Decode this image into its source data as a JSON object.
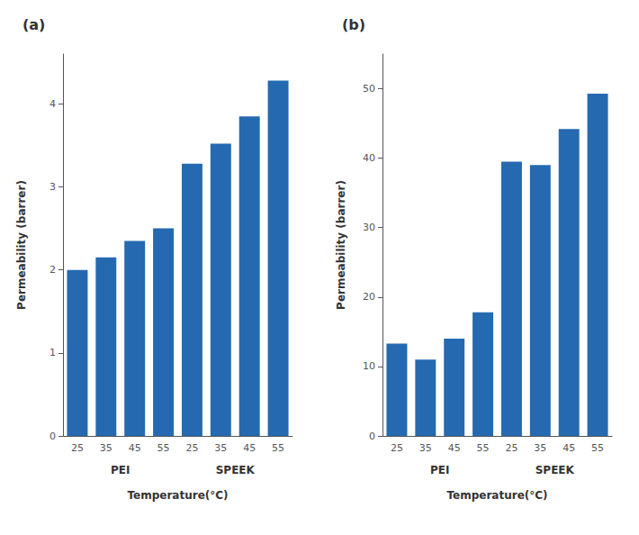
{
  "chart_data": [
    {
      "type": "bar",
      "title": "(a)",
      "categories": [
        "25",
        "35",
        "45",
        "55",
        "25",
        "35",
        "45",
        "55"
      ],
      "annotations": [
        "PEI",
        "SPEEK"
      ],
      "values": [
        2.0,
        2.15,
        2.35,
        2.5,
        3.28,
        3.52,
        3.85,
        4.28
      ],
      "color": "#2569b0",
      "xlabel": "Temperature(°C)",
      "ylabel": "Permeability (barrer)",
      "ylim": [
        0,
        4.6
      ],
      "yticks": [
        0,
        1,
        2,
        3,
        4
      ],
      "grid": false
    },
    {
      "type": "bar",
      "title": "(b)",
      "categories": [
        "25",
        "35",
        "45",
        "55",
        "25",
        "35",
        "45",
        "55"
      ],
      "annotations": [
        "PEI",
        "SPEEK"
      ],
      "values": [
        13.3,
        11.0,
        14.0,
        17.8,
        39.5,
        39.0,
        44.2,
        49.3
      ],
      "color": "#2569b0",
      "xlabel": "Temperature(°C)",
      "ylabel": "Permeability (barrer)",
      "ylim": [
        0,
        55
      ],
      "yticks": [
        0,
        10,
        20,
        30,
        40,
        50
      ],
      "grid": false
    }
  ]
}
